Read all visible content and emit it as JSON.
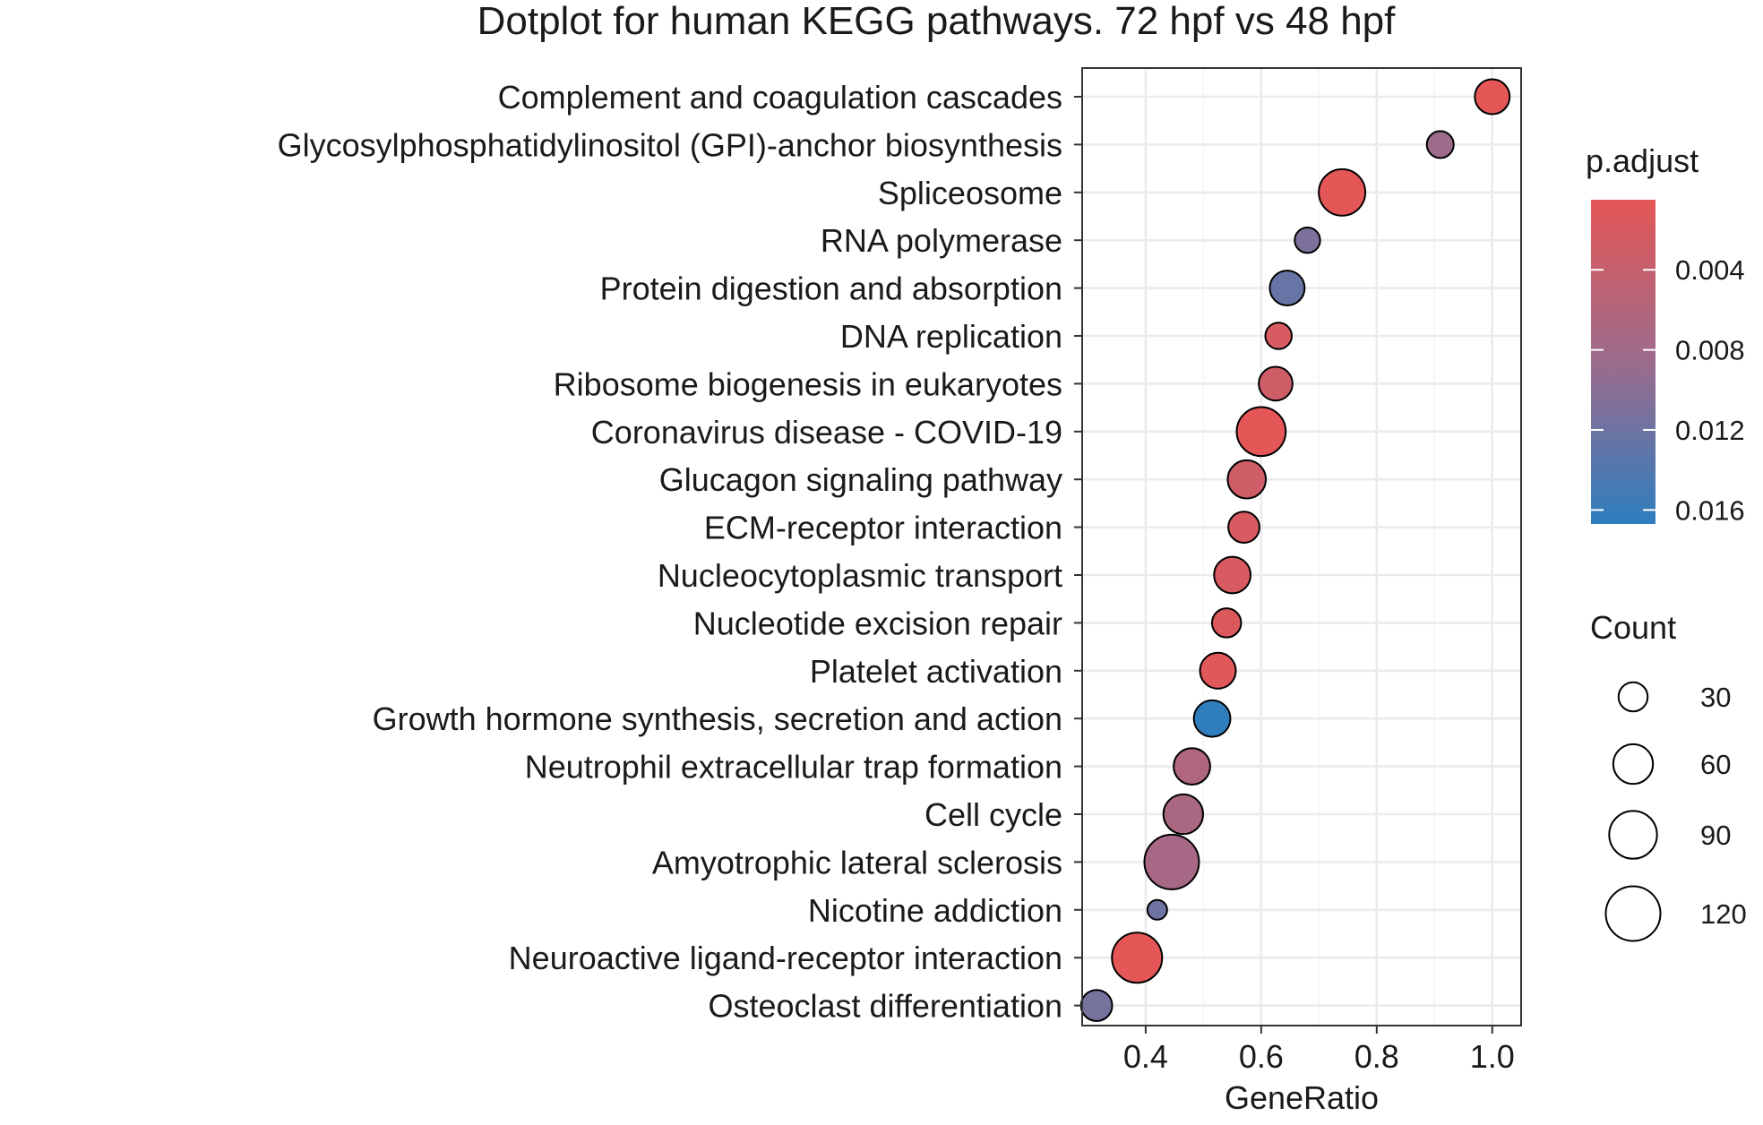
{
  "chart_data": {
    "type": "scatter",
    "title": "Dotplot for human KEGG pathways. 72 hpf vs 48 hpf",
    "xlabel": "GeneRatio",
    "ylabel": "",
    "xlim": [
      0.29,
      1.05
    ],
    "x_ticks": [
      0.4,
      0.6,
      0.8,
      1.0
    ],
    "x_tick_labels": [
      "0.4",
      "0.6",
      "0.8",
      "1.0"
    ],
    "grid": true,
    "categories": [
      "Complement and coagulation cascades",
      "Glycosylphosphatidylinositol (GPI)-anchor biosynthesis",
      "Spliceosome",
      "RNA polymerase",
      "Protein digestion and absorption",
      "DNA replication",
      "Ribosome biogenesis in eukaryotes",
      "Coronavirus disease - COVID-19",
      "Glucagon signaling pathway",
      "ECM-receptor interaction",
      "Nucleocytoplasmic transport",
      "Nucleotide excision repair",
      "Platelet activation",
      "Growth hormone synthesis, secretion and action",
      "Neutrophil extracellular trap formation",
      "Cell cycle",
      "Amyotrophic lateral sclerosis",
      "Nicotine addiction",
      "Neuroactive ligand-receptor interaction",
      "Osteoclast differentiation"
    ],
    "points": [
      {
        "pathway": "Complement and coagulation cascades",
        "gene_ratio": 1.0,
        "count": 45,
        "p_adjust": 0.0005
      },
      {
        "pathway": "Glycosylphosphatidylinositol (GPI)-anchor biosynthesis",
        "gene_ratio": 0.91,
        "count": 25,
        "p_adjust": 0.0085
      },
      {
        "pathway": "Spliceosome",
        "gene_ratio": 0.74,
        "count": 85,
        "p_adjust": 0.0005
      },
      {
        "pathway": "RNA polymerase",
        "gene_ratio": 0.68,
        "count": 22,
        "p_adjust": 0.011
      },
      {
        "pathway": "Protein digestion and absorption",
        "gene_ratio": 0.645,
        "count": 45,
        "p_adjust": 0.0125
      },
      {
        "pathway": "DNA replication",
        "gene_ratio": 0.63,
        "count": 24,
        "p_adjust": 0.002
      },
      {
        "pathway": "Ribosome biogenesis in eukaryotes",
        "gene_ratio": 0.625,
        "count": 42,
        "p_adjust": 0.003
      },
      {
        "pathway": "Coronavirus disease - COVID-19",
        "gene_ratio": 0.6,
        "count": 95,
        "p_adjust": 0.0005
      },
      {
        "pathway": "Glucagon signaling pathway",
        "gene_ratio": 0.575,
        "count": 55,
        "p_adjust": 0.003
      },
      {
        "pathway": "ECM-receptor interaction",
        "gene_ratio": 0.57,
        "count": 35,
        "p_adjust": 0.002
      },
      {
        "pathway": "Nucleocytoplasmic transport",
        "gene_ratio": 0.55,
        "count": 50,
        "p_adjust": 0.002
      },
      {
        "pathway": "Nucleotide excision repair",
        "gene_ratio": 0.54,
        "count": 30,
        "p_adjust": 0.0015
      },
      {
        "pathway": "Platelet activation",
        "gene_ratio": 0.525,
        "count": 48,
        "p_adjust": 0.001
      },
      {
        "pathway": "Growth hormone synthesis, secretion and action",
        "gene_ratio": 0.515,
        "count": 50,
        "p_adjust": 0.0165
      },
      {
        "pathway": "Neutrophil extracellular trap formation",
        "gene_ratio": 0.48,
        "count": 50,
        "p_adjust": 0.0065
      },
      {
        "pathway": "Cell cycle",
        "gene_ratio": 0.465,
        "count": 60,
        "p_adjust": 0.007
      },
      {
        "pathway": "Amyotrophic lateral sclerosis",
        "gene_ratio": 0.445,
        "count": 120,
        "p_adjust": 0.0075
      },
      {
        "pathway": "Nicotine addiction",
        "gene_ratio": 0.42,
        "count": 12,
        "p_adjust": 0.012
      },
      {
        "pathway": "Neuroactive ligand-receptor interaction",
        "gene_ratio": 0.385,
        "count": 100,
        "p_adjust": 0.0005
      },
      {
        "pathway": "Osteoclast differentiation",
        "gene_ratio": 0.315,
        "count": 35,
        "p_adjust": 0.0115
      }
    ],
    "color_legend": {
      "title": "p.adjust",
      "ticks": [
        0.004,
        0.008,
        0.012,
        0.016
      ],
      "tick_labels": [
        "0.004",
        "0.008",
        "0.012",
        "0.016"
      ],
      "range": [
        0.0005,
        0.0167
      ],
      "color_low": "#E45756",
      "color_mid": "#9C6B8C",
      "color_high": "#2E7EBF"
    },
    "size_legend": {
      "title": "Count",
      "values": [
        30,
        60,
        90,
        120
      ],
      "labels": [
        "30",
        "60",
        "90",
        "120"
      ]
    },
    "legend_position": "right"
  }
}
